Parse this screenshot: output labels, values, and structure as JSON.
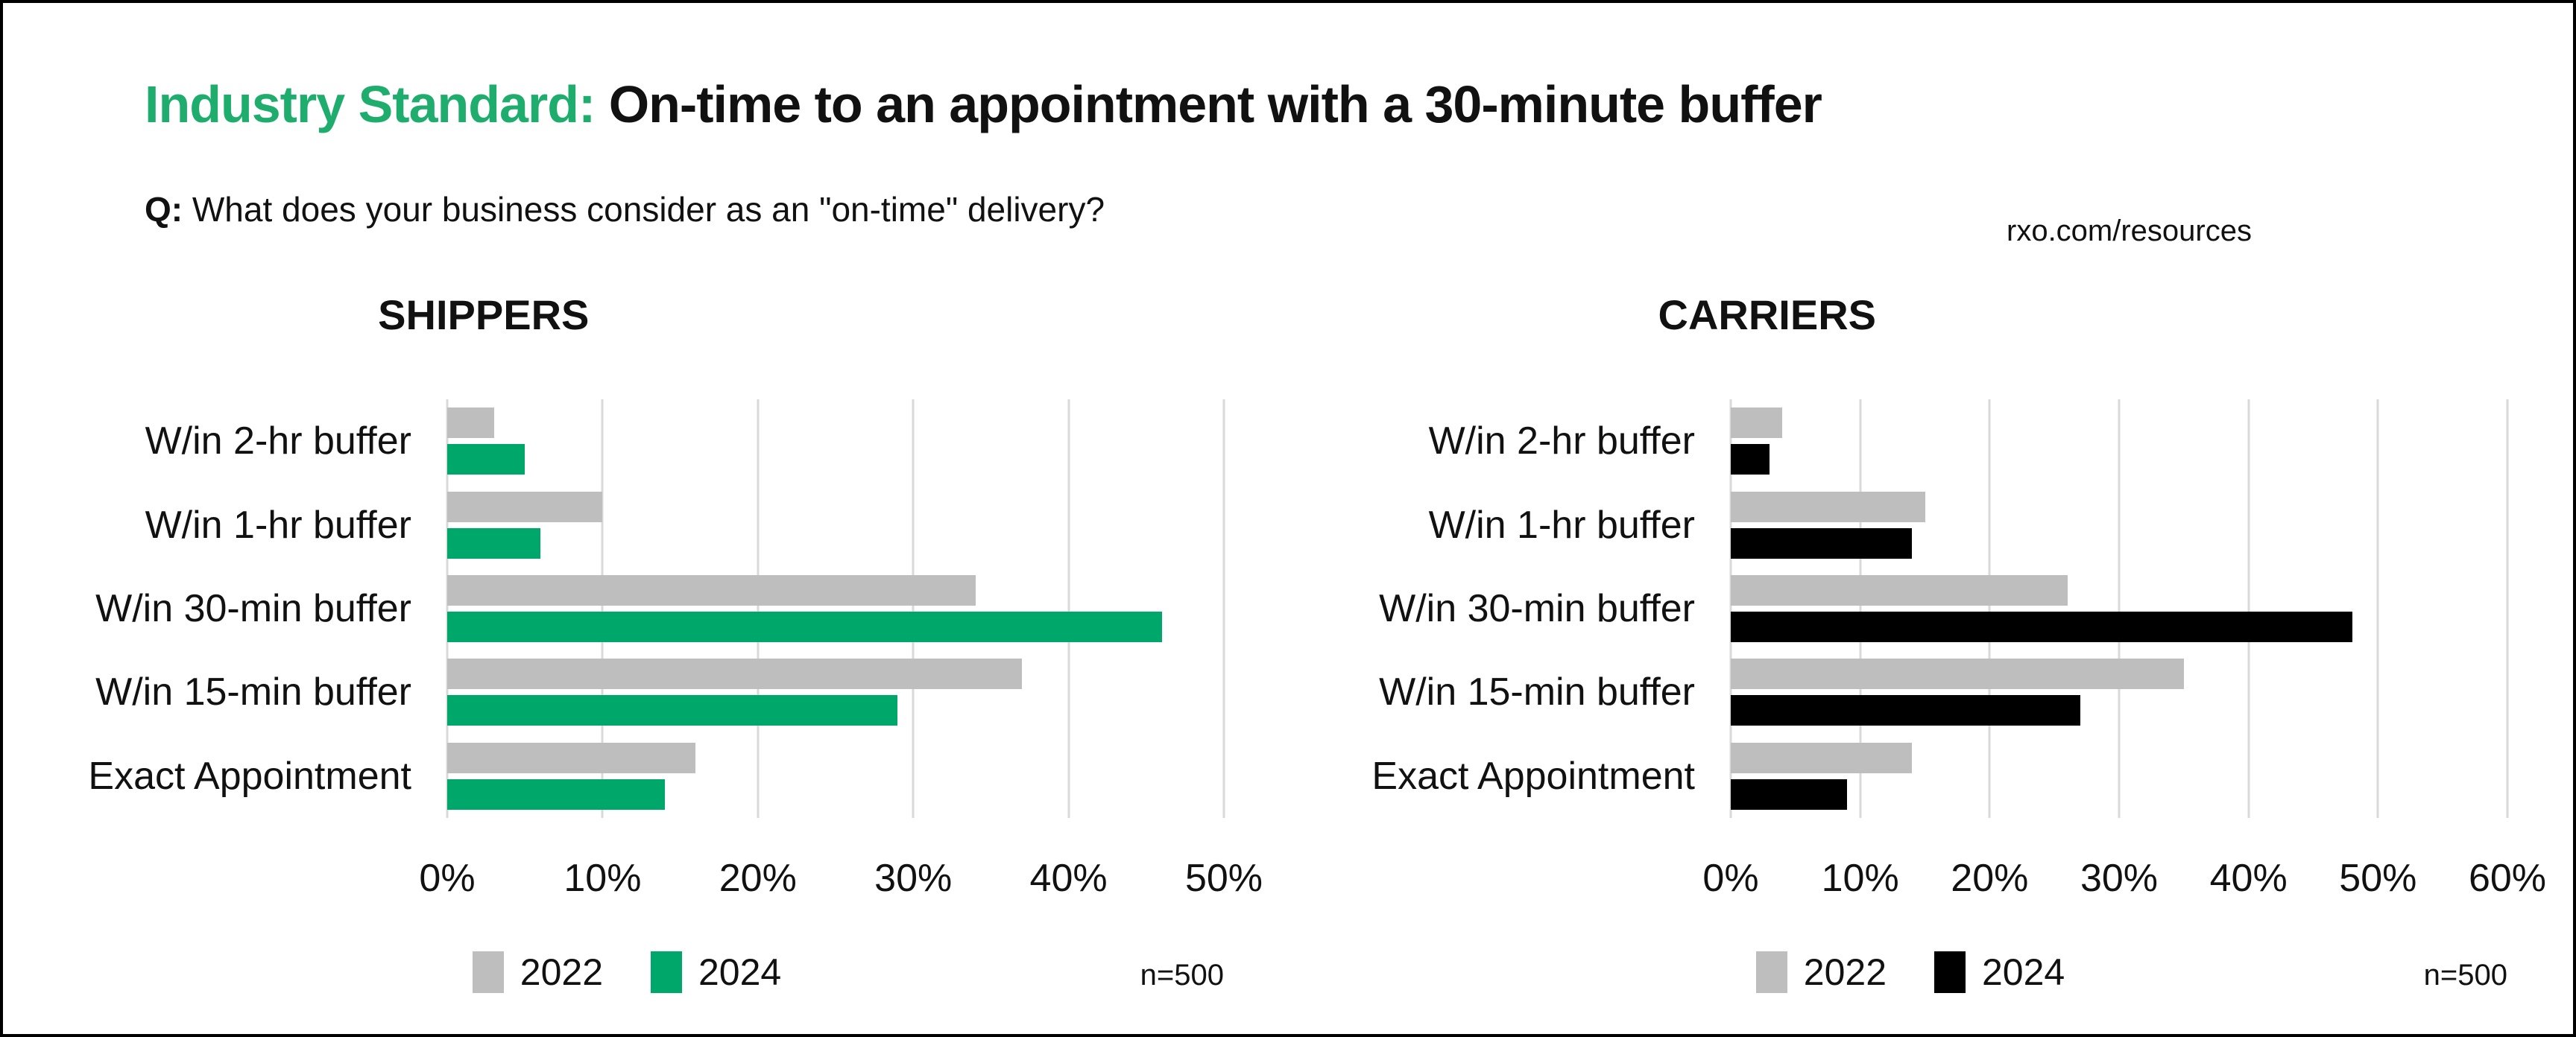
{
  "page": {
    "title_highlight": "Industry Standard:",
    "title_rest": " On-time to an appointment with a 30-minute buffer",
    "question_label": "Q:",
    "question_text": " What does your business consider as an \"on-time\" delivery?",
    "source_link": "rxo.com/resources"
  },
  "colors": {
    "accent_green": "#1FAD6E",
    "bar_green": "#00A76B",
    "bar_gray": "#BEBEBE",
    "bar_black": "#000000",
    "gridline": "#D9D9D9",
    "text": "#111111",
    "border": "#000000",
    "background": "#FFFFFF"
  },
  "chart_data": [
    {
      "type": "bar",
      "orientation": "horizontal",
      "title": "SHIPPERS",
      "categories": [
        "W/in 2-hr buffer",
        "W/in 1-hr buffer",
        "W/in 30-min buffer",
        "W/in 15-min buffer",
        "Exact Appointment"
      ],
      "series": [
        {
          "name": "2022",
          "color": "#BEBEBE",
          "values": [
            3,
            10,
            34,
            37,
            16
          ]
        },
        {
          "name": "2024",
          "color": "#00A76B",
          "values": [
            5,
            6,
            46,
            29,
            14
          ]
        }
      ],
      "xlim": [
        0,
        50
      ],
      "x_ticks": [
        "0%",
        "10%",
        "20%",
        "30%",
        "40%",
        "50%"
      ],
      "grid": "vertical-gridlines",
      "legend_position": "bottom",
      "note": "n=500"
    },
    {
      "type": "bar",
      "orientation": "horizontal",
      "title": "CARRIERS",
      "categories": [
        "W/in 2-hr buffer",
        "W/in 1-hr buffer",
        "W/in 30-min buffer",
        "W/in 15-min buffer",
        "Exact Appointment"
      ],
      "series": [
        {
          "name": "2022",
          "color": "#BEBEBE",
          "values": [
            4,
            15,
            26,
            35,
            14
          ]
        },
        {
          "name": "2024",
          "color": "#000000",
          "values": [
            3,
            14,
            48,
            27,
            9
          ]
        }
      ],
      "xlim": [
        0,
        60
      ],
      "x_ticks": [
        "0%",
        "10%",
        "20%",
        "30%",
        "40%",
        "50%",
        "60%"
      ],
      "grid": "vertical-gridlines",
      "legend_position": "bottom",
      "note": "n=500"
    }
  ]
}
